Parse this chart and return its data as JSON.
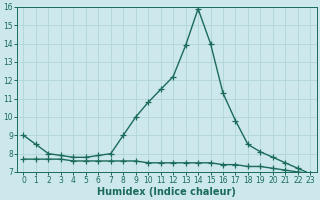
{
  "xlabel": "Humidex (Indice chaleur)",
  "x_values": [
    0,
    1,
    2,
    3,
    4,
    5,
    6,
    7,
    8,
    9,
    10,
    11,
    12,
    13,
    14,
    15,
    16,
    17,
    18,
    19,
    20,
    21,
    22,
    23
  ],
  "upper_line": [
    9.0,
    8.5,
    8.0,
    7.9,
    7.8,
    7.8,
    7.9,
    8.0,
    9.0,
    10.0,
    10.8,
    11.5,
    12.2,
    13.9,
    15.9,
    14.0,
    11.3,
    9.8,
    8.5,
    8.1,
    7.8,
    7.5,
    7.2,
    6.9
  ],
  "lower_line": [
    7.7,
    7.7,
    7.7,
    7.7,
    7.6,
    7.6,
    7.6,
    7.6,
    7.6,
    7.6,
    7.5,
    7.5,
    7.5,
    7.5,
    7.5,
    7.5,
    7.4,
    7.4,
    7.3,
    7.3,
    7.2,
    7.1,
    7.0,
    6.9
  ],
  "line_color": "#1a6b5a",
  "bg_color": "#cde8ec",
  "grid_color": "#b0d4d8",
  "ylim": [
    7,
    16
  ],
  "xlim": [
    -0.5,
    23.5
  ],
  "yticks": [
    7,
    8,
    9,
    10,
    11,
    12,
    13,
    14,
    15,
    16
  ],
  "xtick_labels": [
    "0",
    "1",
    "2",
    "3",
    "4",
    "5",
    "6",
    "7",
    "8",
    "9",
    "10",
    "11",
    "12",
    "13",
    "14",
    "15",
    "16",
    "17",
    "18",
    "19",
    "20",
    "21",
    "22",
    "23"
  ],
  "marker": "+",
  "markersize": 4,
  "linewidth": 1.0,
  "tick_fontsize": 5.5,
  "xlabel_fontsize": 7.0
}
